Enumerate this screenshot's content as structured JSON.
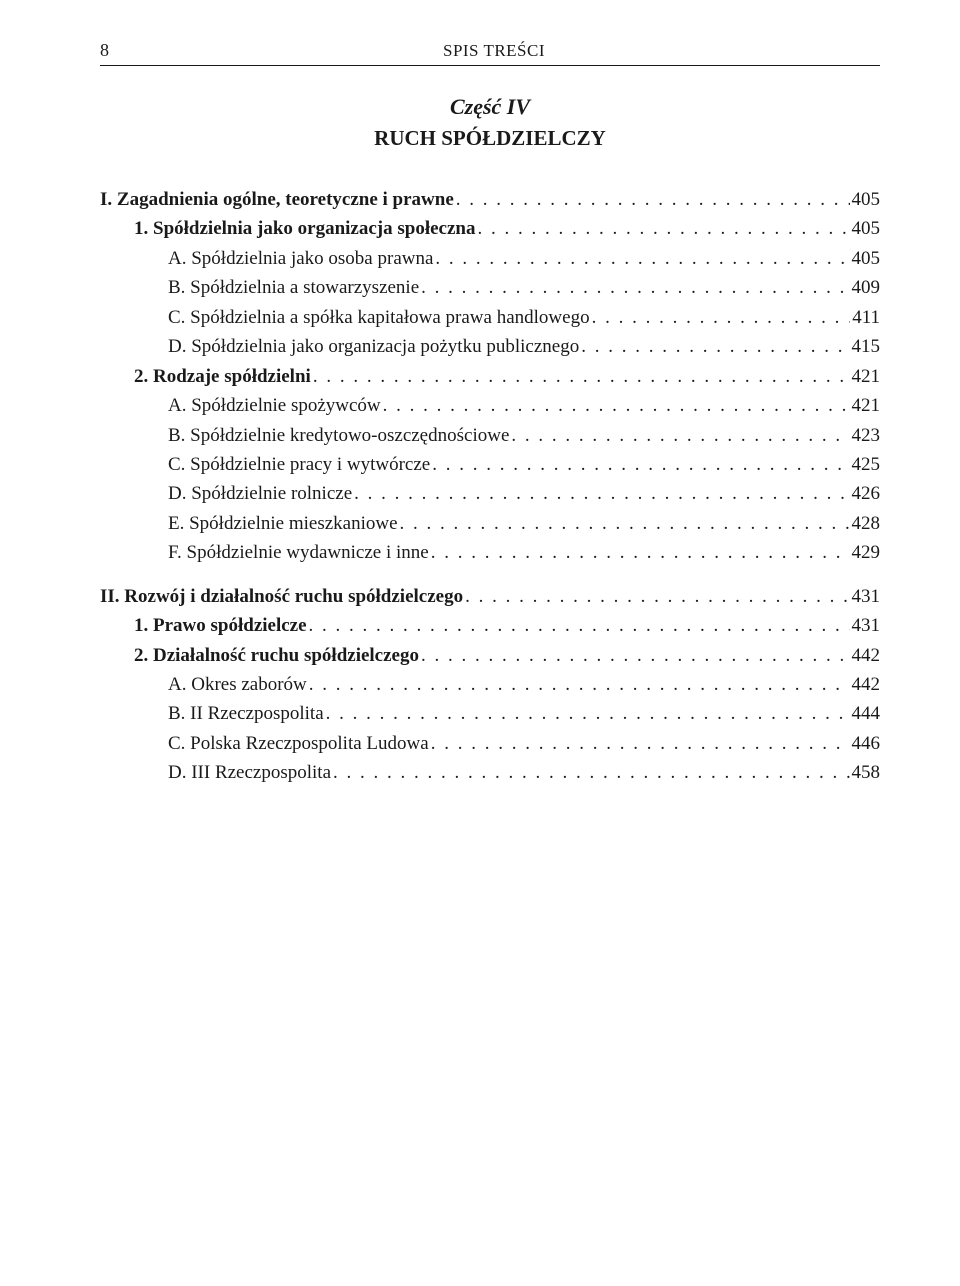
{
  "header": {
    "page_number": "8",
    "running_title": "SPIS TREŚCI"
  },
  "part": {
    "label": "Część IV",
    "title": "RUCH SPÓŁDZIELCZY"
  },
  "toc": [
    {
      "indent": 0,
      "bold": true,
      "text": "I. Zagadnienia ogólne, teoretyczne i prawne",
      "page": "405"
    },
    {
      "indent": 1,
      "bold": true,
      "text": "1. Spółdzielnia jako organizacja społeczna",
      "page": "405"
    },
    {
      "indent": 2,
      "bold": false,
      "text": "A. Spółdzielnia jako osoba prawna",
      "page": "405"
    },
    {
      "indent": 2,
      "bold": false,
      "text": "B. Spółdzielnia a stowarzyszenie",
      "page": "409"
    },
    {
      "indent": 2,
      "bold": false,
      "text": "C. Spółdzielnia a spółka kapitałowa prawa handlowego",
      "page": "411"
    },
    {
      "indent": 2,
      "bold": false,
      "text": "D. Spółdzielnia jako organizacja pożytku publicznego",
      "page": "415"
    },
    {
      "indent": 1,
      "bold": true,
      "text": "2. Rodzaje spółdzielni",
      "page": "421"
    },
    {
      "indent": 2,
      "bold": false,
      "text": "A. Spółdzielnie spożywców",
      "page": "421"
    },
    {
      "indent": 2,
      "bold": false,
      "text": "B. Spółdzielnie kredytowo-oszczędnościowe",
      "page": "423"
    },
    {
      "indent": 2,
      "bold": false,
      "text": "C. Spółdzielnie pracy i wytwórcze",
      "page": "425"
    },
    {
      "indent": 2,
      "bold": false,
      "text": "D. Spółdzielnie rolnicze",
      "page": "426"
    },
    {
      "indent": 2,
      "bold": false,
      "text": "E. Spółdzielnie mieszkaniowe",
      "page": "428"
    },
    {
      "indent": 2,
      "bold": false,
      "text": "F. Spółdzielnie wydawnicze i inne",
      "page": "429"
    },
    {
      "spacer": true
    },
    {
      "indent": 0,
      "bold": true,
      "text": "II. Rozwój i działalność ruchu spółdzielczego",
      "page": "431"
    },
    {
      "indent": 1,
      "bold": true,
      "text": "1. Prawo spółdzielcze",
      "page": "431"
    },
    {
      "indent": 1,
      "bold": true,
      "text": "2. Działalność ruchu spółdzielczego",
      "page": "442"
    },
    {
      "indent": 2,
      "bold": false,
      "text": "A. Okres zaborów",
      "page": "442"
    },
    {
      "indent": 2,
      "bold": false,
      "text": "B. II Rzeczpospolita",
      "page": "444"
    },
    {
      "indent": 2,
      "bold": false,
      "text": "C. Polska Rzeczpospolita Ludowa",
      "page": "446"
    },
    {
      "indent": 2,
      "bold": false,
      "text": "D. III Rzeczpospolita",
      "page": "458"
    }
  ]
}
